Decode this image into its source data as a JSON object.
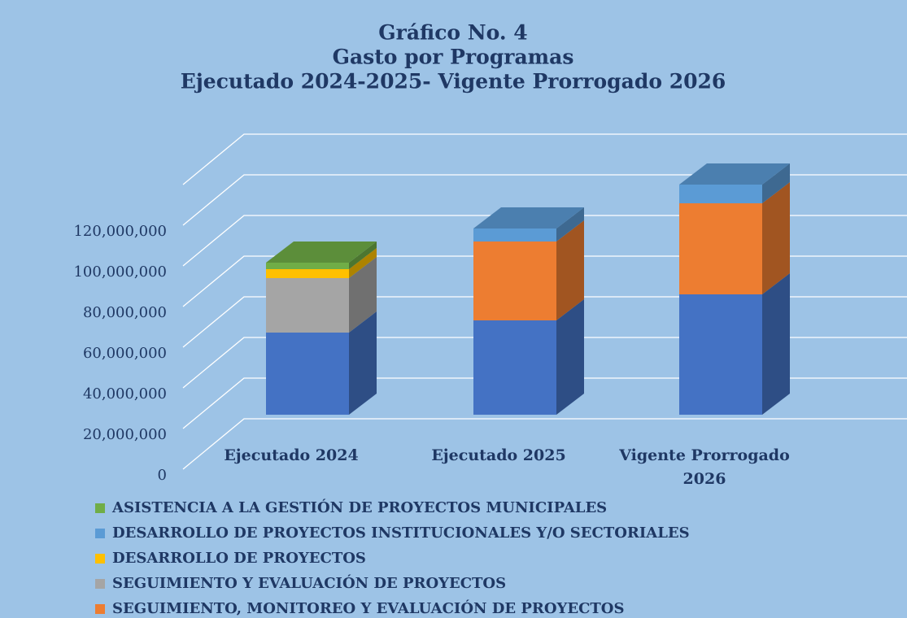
{
  "chart_data": {
    "type": "bar3d_stacked",
    "title": [
      "Gráfico No. 4",
      "Gasto por Programas",
      "Ejecutado 2024-2025- Vigente Prorrogado 2026"
    ],
    "categories": [
      "Ejecutado 2024",
      "Ejecutado 2025",
      "Vigente Prorrogado 2026"
    ],
    "series": [
      {
        "color": "#4472c4",
        "values": [
          40400000,
          46400000,
          59200000
        ]
      },
      {
        "name": "SEGUIMIENTO, MONITOREO Y EVALUACIÓN DE PROYECTOS",
        "color": "#ed7d31",
        "values": [
          0,
          38800000,
          44800000
        ]
      },
      {
        "name": "SEGUIMIENTO Y EVALUACIÓN DE PROYECTOS",
        "color": "#a5a5a5",
        "values": [
          26800000,
          0,
          0
        ]
      },
      {
        "name": "DESARROLLO DE PROYECTOS",
        "color": "#ffc000",
        "values": [
          4400000,
          0,
          0
        ]
      },
      {
        "name": "DESARROLLO DE PROYECTOS INSTITUCIONALES Y/O SECTORIALES",
        "color": "#5b9bd5",
        "values": [
          0,
          6400000,
          9200000
        ]
      },
      {
        "name": "ASISTENCIA A LA GESTIÓN DE PROYECTOS MUNICIPALES",
        "color": "#70ad47",
        "values": [
          3200000,
          0,
          0
        ]
      }
    ],
    "ylim": [
      0,
      140000000
    ],
    "yticks": [
      0,
      {
        "value": 20000000,
        "label": "20,000,000"
      },
      {
        "value": 40000000,
        "label": "40,000,000"
      },
      {
        "value": 60000000,
        "label": "60,000,000"
      },
      {
        "value": 80000000,
        "label": "80,000,000"
      },
      {
        "value": 100000000,
        "label": "100,000,000"
      },
      {
        "value": 120000000,
        "label": "120,000,000"
      }
    ],
    "grid": true
  }
}
